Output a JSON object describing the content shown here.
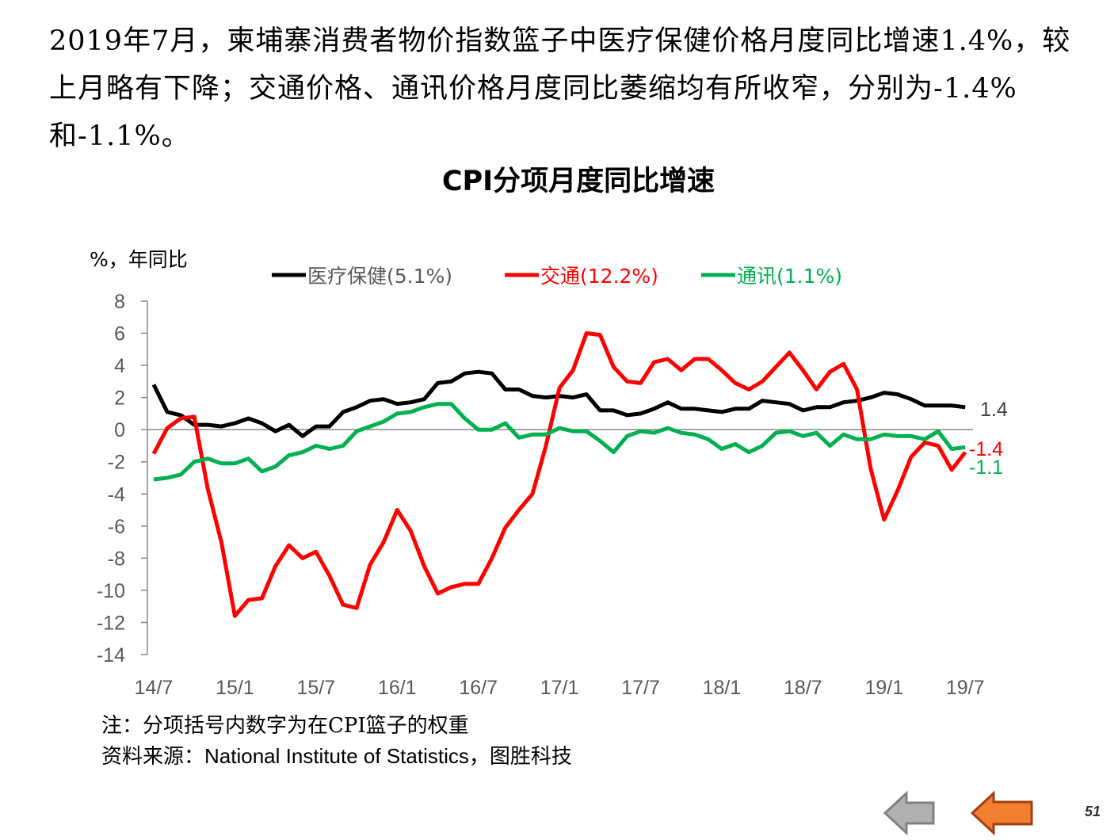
{
  "intro_text": "2019年7月，柬埔寨消费者物价指数篮子中医疗保健价格月度同比增速1.4%，较上月略有下降；交通价格、通讯价格月度同比萎缩均有所收窄，分别为-1.4%和-1.1%。",
  "notes": {
    "note": "注：分项括号内数字为在CPI篮子的权重",
    "source_prefix": "资料来源：",
    "source_en": "National Institute of Statistics",
    "source_suffix": "，图胜科技"
  },
  "page_number": "51",
  "nav": {
    "back_icon": "grey-left-arrow-icon",
    "prev_icon": "orange-left-arrow-icon"
  },
  "chart_data": {
    "type": "line",
    "title": "CPI分项月度同比增速",
    "ylabel": "%，年同比",
    "ylim": [
      -14,
      8
    ],
    "yticks": [
      "8",
      "6",
      "4",
      "2",
      "0",
      "-2",
      "-4",
      "-6",
      "-8",
      "-10",
      "-12",
      "-14"
    ],
    "xtick_labels": [
      "14/7",
      "15/1",
      "15/7",
      "16/1",
      "16/7",
      "17/1",
      "17/7",
      "18/1",
      "18/7",
      "19/1",
      "19/7"
    ],
    "x_start": "2014-07",
    "x_end": "2019-07",
    "legend_position": "top",
    "series": [
      {
        "name": "医疗保健(5.1%)",
        "color": "#000000",
        "end_label": "1.4",
        "label_color": "#404040",
        "values": [
          2.8,
          1.1,
          0.9,
          0.3,
          0.3,
          0.2,
          0.4,
          0.7,
          0.4,
          -0.1,
          0.3,
          -0.4,
          0.2,
          0.2,
          1.1,
          1.4,
          1.8,
          1.9,
          1.6,
          1.7,
          1.9,
          2.9,
          3.0,
          3.5,
          3.6,
          3.5,
          2.5,
          2.5,
          2.1,
          2.0,
          2.1,
          2.0,
          2.2,
          1.2,
          1.2,
          0.9,
          1.0,
          1.3,
          1.7,
          1.3,
          1.3,
          1.2,
          1.1,
          1.3,
          1.3,
          1.8,
          1.7,
          1.6,
          1.2,
          1.4,
          1.4,
          1.7,
          1.8,
          2.0,
          2.3,
          2.2,
          1.9,
          1.5,
          1.5,
          1.5,
          1.4
        ]
      },
      {
        "name": "交通(12.2%)",
        "color": "#ff0000",
        "end_label": "-1.4",
        "label_color": "#ff0000",
        "values": [
          -1.5,
          0.1,
          0.7,
          0.8,
          -3.7,
          -7.0,
          -11.6,
          -10.6,
          -10.5,
          -8.5,
          -7.2,
          -8.0,
          -7.6,
          -9.1,
          -10.9,
          -11.1,
          -8.4,
          -7.0,
          -5.0,
          -6.3,
          -8.5,
          -10.2,
          -9.8,
          -9.6,
          -9.6,
          -8.0,
          -6.1,
          -5.0,
          -4.0,
          -1.0,
          2.6,
          3.7,
          6.0,
          5.9,
          3.9,
          3.0,
          2.9,
          4.2,
          4.4,
          3.7,
          4.4,
          4.4,
          3.7,
          2.9,
          2.5,
          3.0,
          3.9,
          4.8,
          3.7,
          2.5,
          3.6,
          4.1,
          2.5,
          -2.4,
          -5.6,
          -3.8,
          -1.7,
          -0.8,
          -1.0,
          -2.5,
          -1.4
        ]
      },
      {
        "name": "通讯(1.1%)",
        "color": "#00b050",
        "end_label": "-1.1",
        "label_color": "#00b050",
        "values": [
          -3.1,
          -3.0,
          -2.8,
          -2.0,
          -1.8,
          -2.1,
          -2.1,
          -1.8,
          -2.6,
          -2.3,
          -1.6,
          -1.4,
          -1.0,
          -1.2,
          -1.0,
          -0.1,
          0.2,
          0.5,
          1.0,
          1.1,
          1.4,
          1.6,
          1.6,
          0.7,
          0.0,
          0.0,
          0.4,
          -0.5,
          -0.3,
          -0.3,
          0.1,
          -0.1,
          -0.1,
          -0.7,
          -1.4,
          -0.4,
          -0.1,
          -0.2,
          0.1,
          -0.2,
          -0.3,
          -0.6,
          -1.2,
          -0.9,
          -1.4,
          -1.0,
          -0.2,
          -0.1,
          -0.4,
          -0.2,
          -1.0,
          -0.3,
          -0.6,
          -0.6,
          -0.3,
          -0.4,
          -0.4,
          -0.6,
          -0.1,
          -1.2,
          -1.1
        ]
      }
    ]
  }
}
